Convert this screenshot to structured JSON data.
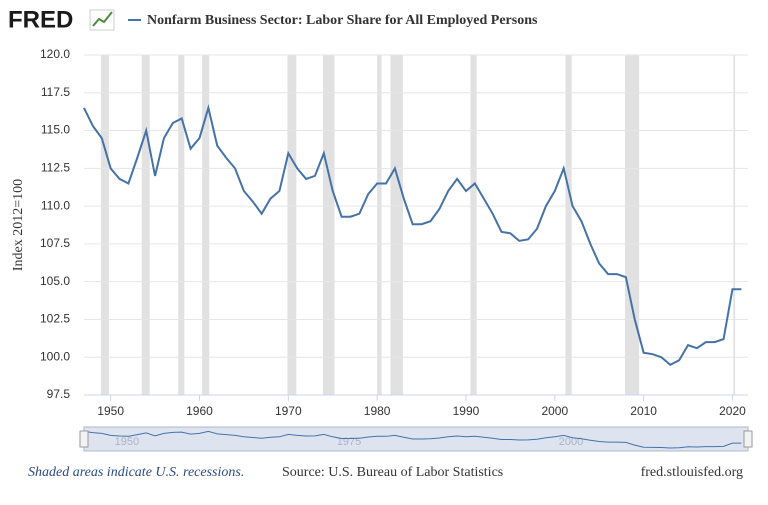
{
  "logo": "FRED",
  "chart_data": {
    "type": "line",
    "ylabel": "Index 2012=100",
    "x": [
      1947,
      1948,
      1949,
      1950,
      1951,
      1952,
      1953,
      1954,
      1955,
      1956,
      1957,
      1958,
      1959,
      1960,
      1961,
      1962,
      1963,
      1964,
      1965,
      1966,
      1967,
      1968,
      1969,
      1970,
      1971,
      1972,
      1973,
      1974,
      1975,
      1976,
      1977,
      1978,
      1979,
      1980,
      1981,
      1982,
      1983,
      1984,
      1985,
      1986,
      1987,
      1988,
      1989,
      1990,
      1991,
      1992,
      1993,
      1994,
      1995,
      1996,
      1997,
      1998,
      1999,
      2000,
      2001,
      2002,
      2003,
      2004,
      2005,
      2006,
      2007,
      2008,
      2009,
      2010,
      2011,
      2012,
      2013,
      2014,
      2015,
      2016,
      2017,
      2018,
      2019,
      2020,
      2021
    ],
    "series": [
      {
        "name": "Nonfarm Business Sector: Labor Share for All Employed Persons",
        "color": "#4572a7",
        "values": [
          116.5,
          115.3,
          114.5,
          112.5,
          111.8,
          111.5,
          113.2,
          115.0,
          112.0,
          114.5,
          115.5,
          115.8,
          113.8,
          114.5,
          116.5,
          114.0,
          113.2,
          112.5,
          111.0,
          110.3,
          109.5,
          110.5,
          111.0,
          113.5,
          112.5,
          111.8,
          112.0,
          113.5,
          111.0,
          109.3,
          109.3,
          109.5,
          110.8,
          111.5,
          111.5,
          112.5,
          110.5,
          108.8,
          108.8,
          109.0,
          109.8,
          111.0,
          111.8,
          111.0,
          111.5,
          110.5,
          109.5,
          108.3,
          108.2,
          107.7,
          107.8,
          108.5,
          110.0,
          111.0,
          112.5,
          110.0,
          109.0,
          107.5,
          106.2,
          105.5,
          105.5,
          105.3,
          102.5,
          100.3,
          100.2,
          100.0,
          99.5,
          99.8,
          100.8,
          100.6,
          101.0,
          101.0,
          101.2,
          104.5,
          104.5
        ]
      }
    ],
    "recessions": [
      [
        1948.9,
        1949.8
      ],
      [
        1953.5,
        1954.4
      ],
      [
        1957.6,
        1958.3
      ],
      [
        1960.3,
        1961.1
      ],
      [
        1969.9,
        1970.9
      ],
      [
        1973.9,
        1975.2
      ],
      [
        1980.0,
        1980.5
      ],
      [
        1981.5,
        1982.9
      ],
      [
        1990.5,
        1991.2
      ],
      [
        2001.2,
        2001.9
      ],
      [
        2007.9,
        2009.5
      ],
      [
        2020.1,
        2020.3
      ]
    ],
    "recession_color": "#e1e1e1",
    "xlim": [
      1947,
      2021.75
    ],
    "xticks": [
      1950,
      1960,
      1970,
      1980,
      1990,
      2000,
      2010,
      2020
    ],
    "ylim": [
      97.5,
      120
    ],
    "yticks": [
      {
        "value": 97.5,
        "label": "97.5"
      },
      {
        "value": 100,
        "label": "100.0"
      },
      {
        "value": 102.5,
        "label": "102.5"
      },
      {
        "value": 105,
        "label": "105.0"
      },
      {
        "value": 107.5,
        "label": "107.5"
      },
      {
        "value": 110,
        "label": "110.0"
      },
      {
        "value": 112.5,
        "label": "112.5"
      },
      {
        "value": 115,
        "label": "115.0"
      },
      {
        "value": 117.5,
        "label": "117.5"
      },
      {
        "value": 120,
        "label": "120.0"
      }
    ],
    "grid": true,
    "navigator_ticks": [
      1950,
      1975,
      2000
    ]
  },
  "footer": {
    "note": "Shaded areas indicate U.S. recessions.",
    "source": "Source: U.S. Bureau of Labor Statistics",
    "site": "fred.stlouisfed.org"
  }
}
